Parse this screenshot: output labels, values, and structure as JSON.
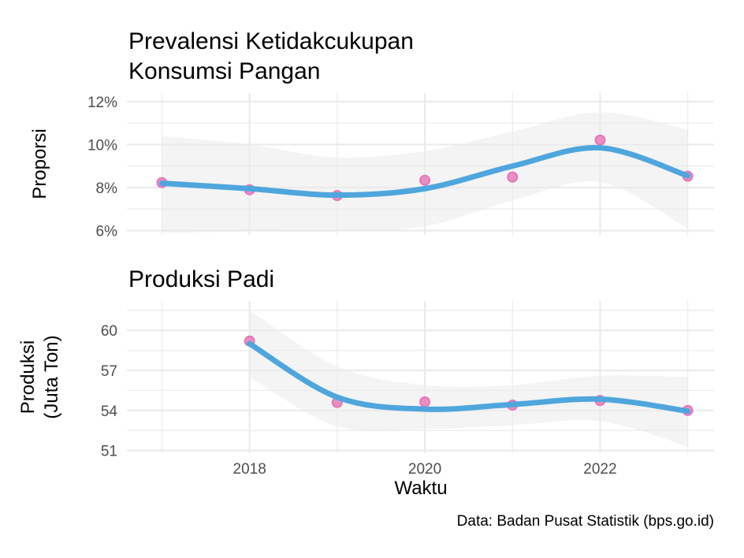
{
  "caption": "Data: Badan Pusat Statistik (bps.go.id)",
  "xlabel": "Waktu",
  "colors": {
    "line": "#4fa6dd",
    "point": "#e377b8",
    "point_fill": "#e57db9",
    "band": "#ebebeb",
    "grid": "#ebebeb"
  },
  "chart_data": [
    {
      "type": "line",
      "title_lines": [
        "Prevalensi Ketidakcukupan",
        "Konsumsi Pangan"
      ],
      "ylabel_lines": [
        "Proporsi"
      ],
      "x": [
        2017,
        2018,
        2019,
        2020,
        2021,
        2022,
        2023
      ],
      "points": [
        8.23,
        7.9,
        7.63,
        8.34,
        8.49,
        10.21,
        8.53
      ],
      "smooth": [
        8.2,
        7.95,
        7.65,
        7.95,
        9.0,
        9.85,
        8.55
      ],
      "band_upper": [
        10.4,
        10.0,
        9.4,
        9.7,
        10.6,
        11.5,
        10.7
      ],
      "band_lower": [
        5.9,
        5.95,
        5.95,
        6.2,
        7.4,
        8.25,
        6.1
      ],
      "xlim": [
        2016.6,
        2023.3
      ],
      "ylim": [
        5.8,
        12.4
      ],
      "yticks": [
        6,
        8,
        10,
        12
      ],
      "ytick_labels": [
        "6%",
        "8%",
        "10%",
        "12%"
      ],
      "xticks": [
        2018,
        2020,
        2022
      ],
      "xtick_labels": [],
      "grid": true,
      "legend": "none"
    },
    {
      "type": "line",
      "title_lines": [
        "Produksi Padi"
      ],
      "ylabel_lines": [
        "Produksi",
        "(Juta Ton)"
      ],
      "x": [
        2018,
        2019,
        2020,
        2021,
        2022,
        2023
      ],
      "points": [
        59.2,
        54.6,
        54.65,
        54.4,
        54.75,
        54.0
      ],
      "smooth": [
        59.0,
        55.0,
        54.1,
        54.45,
        54.85,
        53.95
      ],
      "band_upper": [
        61.5,
        57.3,
        55.9,
        55.9,
        56.6,
        56.5
      ],
      "band_lower": [
        56.5,
        52.8,
        52.6,
        52.9,
        53.2,
        51.3
      ],
      "xlim": [
        2016.6,
        2023.3
      ],
      "ylim": [
        50.8,
        62.2
      ],
      "yticks": [
        51,
        54,
        57,
        60
      ],
      "ytick_labels": [
        "51",
        "54",
        "57",
        "60"
      ],
      "xticks": [
        2018,
        2020,
        2022
      ],
      "xtick_labels": [
        "2018",
        "2020",
        "2022"
      ],
      "grid": true,
      "legend": "none"
    }
  ]
}
